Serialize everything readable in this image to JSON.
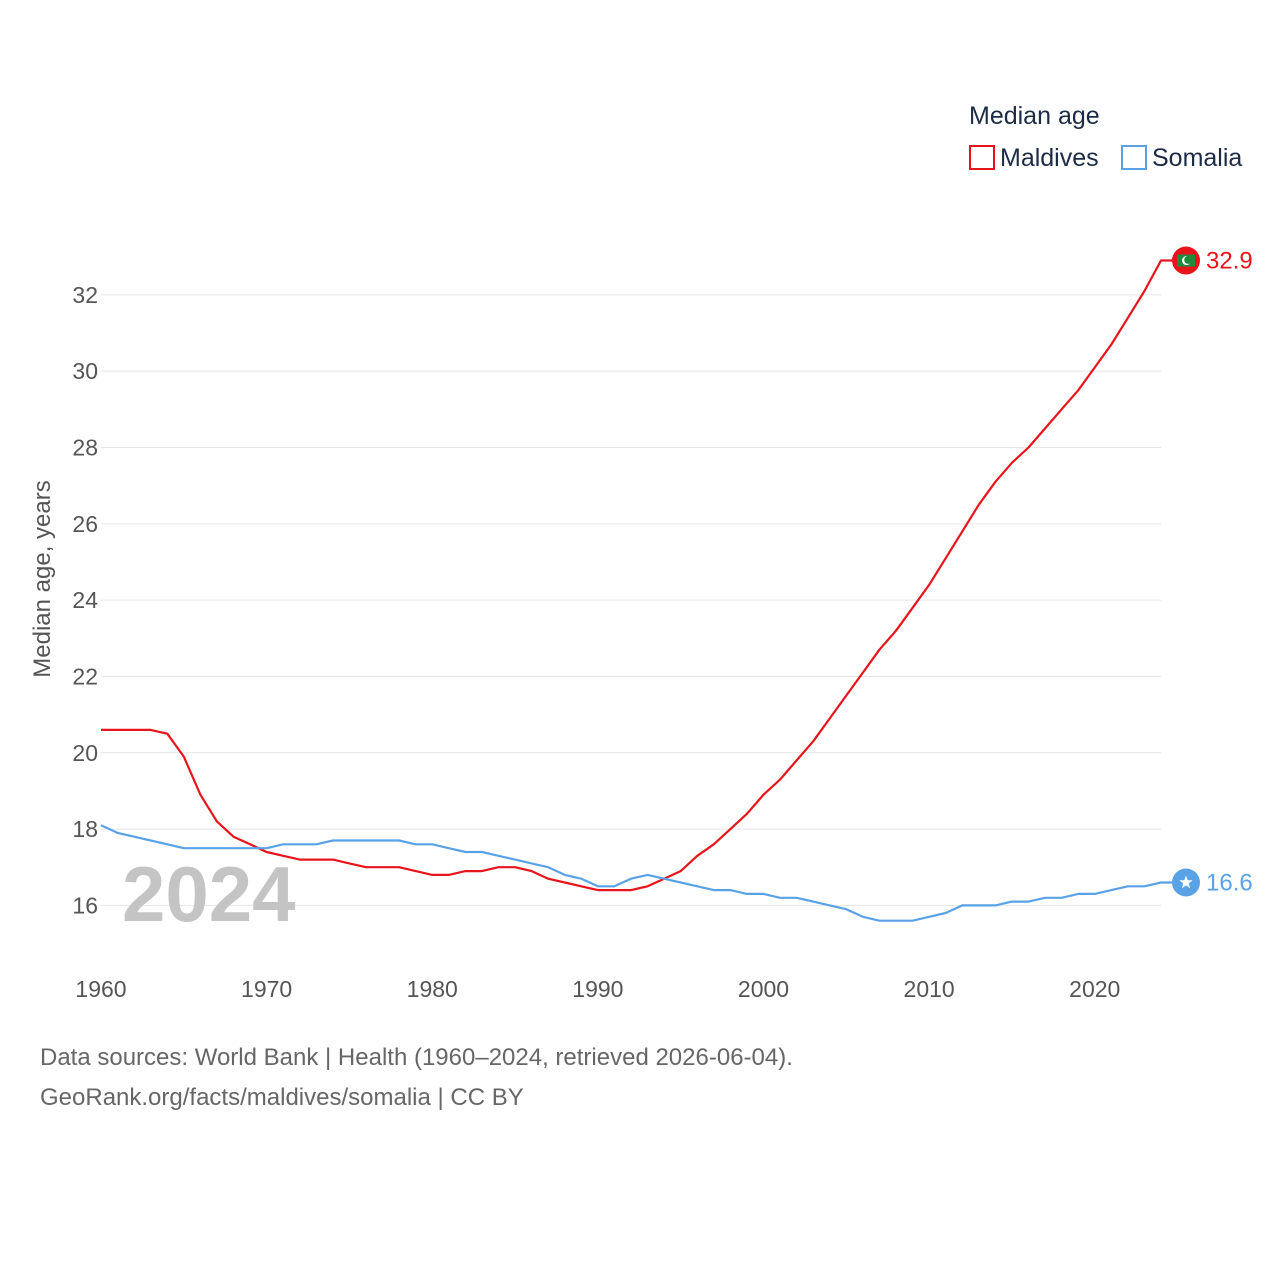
{
  "chart_data": {
    "type": "line",
    "legend_title": "Median age",
    "ylabel": "Median age, years",
    "xlabel": "",
    "year_label": "2024",
    "x": [
      1960,
      1961,
      1962,
      1963,
      1964,
      1965,
      1966,
      1967,
      1968,
      1969,
      1970,
      1971,
      1972,
      1973,
      1974,
      1975,
      1976,
      1977,
      1978,
      1979,
      1980,
      1981,
      1982,
      1983,
      1984,
      1985,
      1986,
      1987,
      1988,
      1989,
      1990,
      1991,
      1992,
      1993,
      1994,
      1995,
      1996,
      1997,
      1998,
      1999,
      2000,
      2001,
      2002,
      2003,
      2004,
      2005,
      2006,
      2007,
      2008,
      2009,
      2010,
      2011,
      2012,
      2013,
      2014,
      2015,
      2016,
      2017,
      2018,
      2019,
      2020,
      2021,
      2022,
      2023,
      2024
    ],
    "xlim": [
      1960,
      2024
    ],
    "ylim": [
      14.7,
      33.7
    ],
    "x_ticks": [
      1960,
      1970,
      1980,
      1990,
      2000,
      2010,
      2020
    ],
    "y_ticks": [
      16,
      18,
      20,
      22,
      24,
      26,
      28,
      30,
      32
    ],
    "series": [
      {
        "name": "Maldives",
        "color": "#e8141b",
        "end_label": "32.9",
        "icon": "maldives-flag-icon",
        "values": [
          20.6,
          20.6,
          20.6,
          20.6,
          20.5,
          19.9,
          18.9,
          18.2,
          17.8,
          17.6,
          17.4,
          17.3,
          17.2,
          17.2,
          17.2,
          17.1,
          17.0,
          17.0,
          17.0,
          16.9,
          16.8,
          16.8,
          16.9,
          16.9,
          17.0,
          17.0,
          16.9,
          16.7,
          16.6,
          16.5,
          16.4,
          16.4,
          16.4,
          16.5,
          16.7,
          16.9,
          17.3,
          17.6,
          18.0,
          18.4,
          18.9,
          19.3,
          19.8,
          20.3,
          20.9,
          21.5,
          22.1,
          22.7,
          23.2,
          23.8,
          24.4,
          25.1,
          25.8,
          26.5,
          27.1,
          27.6,
          28.0,
          28.5,
          29.0,
          29.5,
          30.1,
          30.7,
          31.4,
          32.1,
          32.9
        ]
      },
      {
        "name": "Somalia",
        "color": "#5aa2e6",
        "end_label": "16.6",
        "icon": "somalia-flag-icon",
        "values": [
          18.1,
          17.9,
          17.8,
          17.7,
          17.6,
          17.5,
          17.5,
          17.5,
          17.5,
          17.5,
          17.5,
          17.6,
          17.6,
          17.6,
          17.7,
          17.7,
          17.7,
          17.7,
          17.7,
          17.6,
          17.6,
          17.5,
          17.4,
          17.4,
          17.3,
          17.2,
          17.1,
          17.0,
          16.8,
          16.7,
          16.5,
          16.5,
          16.7,
          16.8,
          16.7,
          16.6,
          16.5,
          16.4,
          16.4,
          16.3,
          16.3,
          16.2,
          16.2,
          16.1,
          16.0,
          15.9,
          15.7,
          15.6,
          15.6,
          15.6,
          15.7,
          15.8,
          16.0,
          16.0,
          16.0,
          16.1,
          16.1,
          16.2,
          16.2,
          16.3,
          16.3,
          16.4,
          16.5,
          16.5,
          16.6
        ]
      }
    ]
  },
  "footer": {
    "sources": "Data sources: World Bank | Health (1960–2024, retrieved 2026-06-04).",
    "credit": "GeoRank.org/facts/maldives/somalia | CC BY"
  }
}
